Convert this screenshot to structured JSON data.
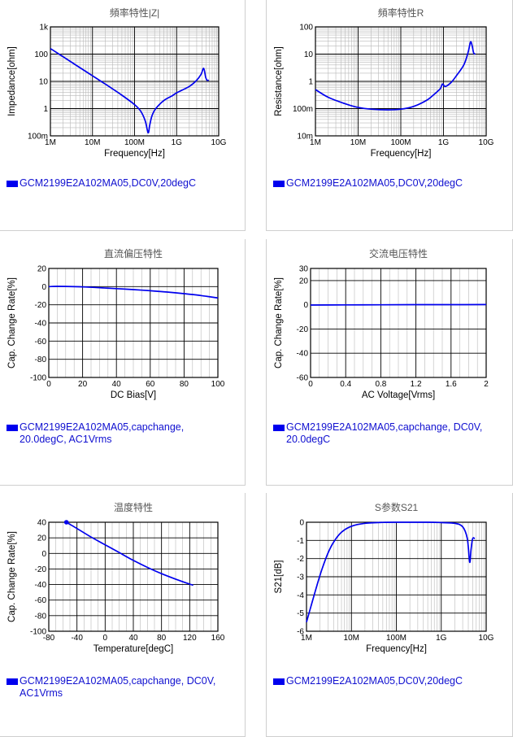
{
  "chart_data": [
    {
      "id": "impedance",
      "type": "line",
      "title": "頻率特性|Z|",
      "xlabel": "Frequency[Hz]",
      "ylabel": "Impedance[ohm]",
      "xscale": "log",
      "yscale": "log",
      "xlim": [
        1000000,
        10000000000
      ],
      "ylim": [
        0.1,
        1000
      ],
      "xticks": [
        {
          "v": 1000000,
          "label": "1M"
        },
        {
          "v": 10000000,
          "label": "10M"
        },
        {
          "v": 100000000,
          "label": "100M"
        },
        {
          "v": 1000000000,
          "label": "1G"
        },
        {
          "v": 10000000000,
          "label": "10G"
        }
      ],
      "yticks": [
        {
          "v": 0.1,
          "label": "100m"
        },
        {
          "v": 1,
          "label": "1"
        },
        {
          "v": 10,
          "label": "10"
        },
        {
          "v": 100,
          "label": "100"
        },
        {
          "v": 1000,
          "label": "1k"
        }
      ],
      "color": "#0000ee",
      "series": [
        {
          "name": "GCM2199E2A102MA05,DC0V,20degC",
          "x": [
            1000000,
            2000000,
            5000000,
            10000000,
            20000000,
            50000000,
            100000000,
            140000000,
            180000000,
            210000000,
            230000000,
            260000000,
            320000000,
            500000000,
            800000000,
            1000000000,
            2000000000,
            3000000000,
            3800000000,
            4400000000,
            4900000000,
            5300000000,
            5800000000
          ],
          "y": [
            160,
            80,
            32,
            16,
            8,
            3.1,
            1.4,
            0.8,
            0.35,
            0.13,
            0.25,
            0.55,
            1,
            2,
            3,
            3.8,
            6.5,
            11,
            18,
            30,
            14,
            11,
            11
          ]
        }
      ],
      "legend": "GCM2199E2A102MA05,DC0V,20degC"
    },
    {
      "id": "resistance",
      "type": "line",
      "title": "頻率特性R",
      "xlabel": "Frequency[Hz]",
      "ylabel": "Resistance[ohm]",
      "xscale": "log",
      "yscale": "log",
      "xlim": [
        1000000,
        10000000000
      ],
      "ylim": [
        0.01,
        100
      ],
      "xticks": [
        {
          "v": 1000000,
          "label": "1M"
        },
        {
          "v": 10000000,
          "label": "10M"
        },
        {
          "v": 100000000,
          "label": "100M"
        },
        {
          "v": 1000000000,
          "label": "1G"
        },
        {
          "v": 10000000000,
          "label": "10G"
        }
      ],
      "yticks": [
        {
          "v": 0.01,
          "label": "10m"
        },
        {
          "v": 0.1,
          "label": "100m"
        },
        {
          "v": 1,
          "label": "1"
        },
        {
          "v": 10,
          "label": "10"
        },
        {
          "v": 100,
          "label": "100"
        }
      ],
      "color": "#0000ee",
      "series": [
        {
          "name": "GCM2199E2A102MA05,DC0V,20degC",
          "x": [
            1000000,
            2000000,
            5000000,
            10000000,
            20000000,
            50000000,
            100000000,
            200000000,
            400000000,
            600000000,
            750000000,
            850000000,
            950000000,
            1100000000,
            1500000000,
            2000000000,
            3000000000,
            3800000000,
            4300000000,
            4700000000,
            5100000000,
            5600000000
          ],
          "y": [
            0.5,
            0.26,
            0.15,
            0.11,
            0.095,
            0.09,
            0.095,
            0.12,
            0.2,
            0.33,
            0.45,
            0.55,
            0.8,
            0.65,
            0.9,
            1.6,
            4,
            12,
            28,
            20,
            11,
            10
          ]
        }
      ],
      "legend": "GCM2199E2A102MA05,DC0V,20degC"
    },
    {
      "id": "dcbias",
      "type": "line",
      "title": "直流偏压特性",
      "xlabel": "DC Bias[V]",
      "ylabel": "Cap. Change Rate[%]",
      "xscale": "linear",
      "yscale": "linear",
      "xlim": [
        0,
        100
      ],
      "ylim": [
        -100,
        20
      ],
      "xticks": [
        {
          "v": 0,
          "label": "0"
        },
        {
          "v": 20,
          "label": "20"
        },
        {
          "v": 40,
          "label": "40"
        },
        {
          "v": 60,
          "label": "60"
        },
        {
          "v": 80,
          "label": "80"
        },
        {
          "v": 100,
          "label": "100"
        }
      ],
      "yticks": [
        {
          "v": 20,
          "label": "20"
        },
        {
          "v": 0,
          "label": "0"
        },
        {
          "v": -20,
          "label": "-20"
        },
        {
          "v": -40,
          "label": "-40"
        },
        {
          "v": -60,
          "label": "-60"
        },
        {
          "v": -80,
          "label": "-80"
        },
        {
          "v": -100,
          "label": "-100"
        }
      ],
      "color": "#0000ee",
      "series": [
        {
          "name": "GCM2199E2A102MA05,capchange,20.0degC, AC1Vrms",
          "x": [
            0,
            5,
            10,
            20,
            30,
            40,
            50,
            60,
            70,
            80,
            90,
            100
          ],
          "y": [
            0,
            0.3,
            0.2,
            -0.3,
            -1.2,
            -2.2,
            -3.3,
            -4.5,
            -6,
            -7.8,
            -9.8,
            -12.5
          ]
        }
      ],
      "legend": "GCM2199E2A102MA05,capchange,\n20.0degC, AC1Vrms"
    },
    {
      "id": "acvoltage",
      "type": "line",
      "title": "交流电压特性",
      "xlabel": "AC Voltage[Vrms]",
      "ylabel": "Cap. Change Rate[%]",
      "xscale": "linear",
      "yscale": "linear",
      "xlim": [
        0,
        2
      ],
      "ylim": [
        -60,
        30
      ],
      "xticks": [
        {
          "v": 0,
          "label": "0"
        },
        {
          "v": 0.4,
          "label": "0.4"
        },
        {
          "v": 0.8,
          "label": "0.8"
        },
        {
          "v": 1.2,
          "label": "1.2"
        },
        {
          "v": 1.6,
          "label": "1.6"
        },
        {
          "v": 2,
          "label": "2"
        }
      ],
      "yticks": [
        {
          "v": 30,
          "label": "30"
        },
        {
          "v": 20,
          "label": "20"
        },
        {
          "v": 0,
          "label": "0"
        },
        {
          "v": -20,
          "label": "-20"
        },
        {
          "v": -40,
          "label": "-40"
        },
        {
          "v": -60,
          "label": "-60"
        }
      ],
      "color": "#0000ee",
      "series": [
        {
          "name": "GCM2199E2A102MA05,capchange, DC0V, 20.0degC",
          "x": [
            0,
            0.4,
            0.8,
            1.2,
            1.6,
            2
          ],
          "y": [
            -0.2,
            -0.1,
            0,
            0.1,
            0.1,
            0.2
          ]
        }
      ],
      "legend": "GCM2199E2A102MA05,capchange, DC0V,\n20.0degC"
    },
    {
      "id": "temperature",
      "type": "line",
      "title": "温度特性",
      "xlabel": "Temperature[degC]",
      "ylabel": "Cap. Change Rate[%]",
      "xscale": "linear",
      "yscale": "linear",
      "xlim": [
        -80,
        160
      ],
      "ylim": [
        -100,
        40
      ],
      "xticks": [
        {
          "v": -80,
          "label": "-80"
        },
        {
          "v": -40,
          "label": "-40"
        },
        {
          "v": 0,
          "label": "0"
        },
        {
          "v": 40,
          "label": "40"
        },
        {
          "v": 80,
          "label": "80"
        },
        {
          "v": 120,
          "label": "120"
        },
        {
          "v": 160,
          "label": "160"
        }
      ],
      "yticks": [
        {
          "v": 40,
          "label": "40"
        },
        {
          "v": 20,
          "label": "20"
        },
        {
          "v": 0,
          "label": "0"
        },
        {
          "v": -20,
          "label": "-20"
        },
        {
          "v": -40,
          "label": "-40"
        },
        {
          "v": -60,
          "label": "-60"
        },
        {
          "v": -80,
          "label": "-80"
        },
        {
          "v": -100,
          "label": "-100"
        }
      ],
      "color": "#0000ee",
      "series": [
        {
          "name": "GCM2199E2A102MA05,capchange, DC0V, AC1Vrms",
          "x": [
            -55,
            -40,
            -20,
            0,
            20,
            40,
            60,
            80,
            100,
            125
          ],
          "y": [
            40,
            32,
            21,
            11,
            1,
            -9,
            -18,
            -26,
            -33,
            -41
          ]
        }
      ],
      "marker_at_start": true,
      "legend": "GCM2199E2A102MA05,capchange, DC0V,\nAC1Vrms"
    },
    {
      "id": "s21",
      "type": "line",
      "title": "S参数S21",
      "xlabel": "Frequency[Hz]",
      "ylabel": "S21[dB]",
      "xscale": "log",
      "yscale": "linear",
      "xlim": [
        1000000,
        10000000000
      ],
      "ylim": [
        -6,
        0
      ],
      "xticks": [
        {
          "v": 1000000,
          "label": "1M"
        },
        {
          "v": 10000000,
          "label": "10M"
        },
        {
          "v": 100000000,
          "label": "100M"
        },
        {
          "v": 1000000000,
          "label": "1G"
        },
        {
          "v": 10000000000,
          "label": "10G"
        }
      ],
      "yticks": [
        {
          "v": 0,
          "label": "0"
        },
        {
          "v": -1,
          "label": "-1"
        },
        {
          "v": -2,
          "label": "-2"
        },
        {
          "v": -3,
          "label": "-3"
        },
        {
          "v": -4,
          "label": "-4"
        },
        {
          "v": -5,
          "label": "-5"
        },
        {
          "v": -6,
          "label": "-6"
        }
      ],
      "color": "#0000ee",
      "series": [
        {
          "name": "GCM2199E2A102MA05,DC0V,20degC",
          "x": [
            1000000,
            1300000,
            1700000,
            2200000,
            3000000,
            4000000,
            6000000,
            10000000,
            20000000,
            50000000,
            100000000,
            500000000,
            1000000000,
            2000000000,
            3000000000,
            3800000000,
            4300000000,
            4600000000,
            5000000000,
            5600000000
          ],
          "y": [
            -5.5,
            -4.5,
            -3.5,
            -2.6,
            -1.7,
            -1.1,
            -0.55,
            -0.22,
            -0.06,
            -0.01,
            0,
            0,
            -0.02,
            -0.06,
            -0.25,
            -0.9,
            -2.2,
            -1.5,
            -0.9,
            -0.9
          ]
        }
      ],
      "legend": "GCM2199E2A102MA05,DC0V,20degC"
    }
  ]
}
